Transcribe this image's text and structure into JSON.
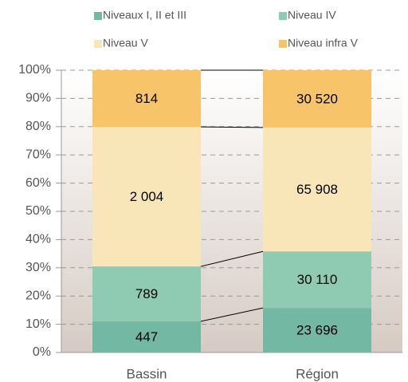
{
  "chart_data": {
    "type": "bar",
    "stacking": "percent",
    "categories": [
      "Bassin",
      "Région"
    ],
    "series": [
      {
        "name": "Niveaux I, II et III",
        "color": "#72b8a2",
        "values": [
          447,
          23696
        ],
        "value_labels": [
          "447",
          "23 696"
        ]
      },
      {
        "name": "Niveau IV",
        "color": "#8fcbb3",
        "values": [
          789,
          30110
        ],
        "value_labels": [
          "789",
          "30 110"
        ]
      },
      {
        "name": "Niveau V",
        "color": "#f8e6b8",
        "values": [
          2004,
          65908
        ],
        "value_labels": [
          "2 004",
          "65 908"
        ]
      },
      {
        "name": "Niveau infra V",
        "color": "#f7c46a",
        "values": [
          814,
          30520
        ],
        "value_labels": [
          "814",
          "30 520"
        ]
      }
    ],
    "ylim": [
      0,
      100
    ],
    "yticks": [
      {
        "value": 0,
        "label": "0%"
      },
      {
        "value": 10,
        "label": "10%"
      },
      {
        "value": 20,
        "label": "20%"
      },
      {
        "value": 30,
        "label": "30%"
      },
      {
        "value": 40,
        "label": "40%"
      },
      {
        "value": 50,
        "label": "50%"
      },
      {
        "value": 60,
        "label": "60%"
      },
      {
        "value": 70,
        "label": "70%"
      },
      {
        "value": 80,
        "label": "80%"
      },
      {
        "value": 90,
        "label": "90%"
      },
      {
        "value": 100,
        "label": "100%"
      }
    ],
    "grid": true
  }
}
